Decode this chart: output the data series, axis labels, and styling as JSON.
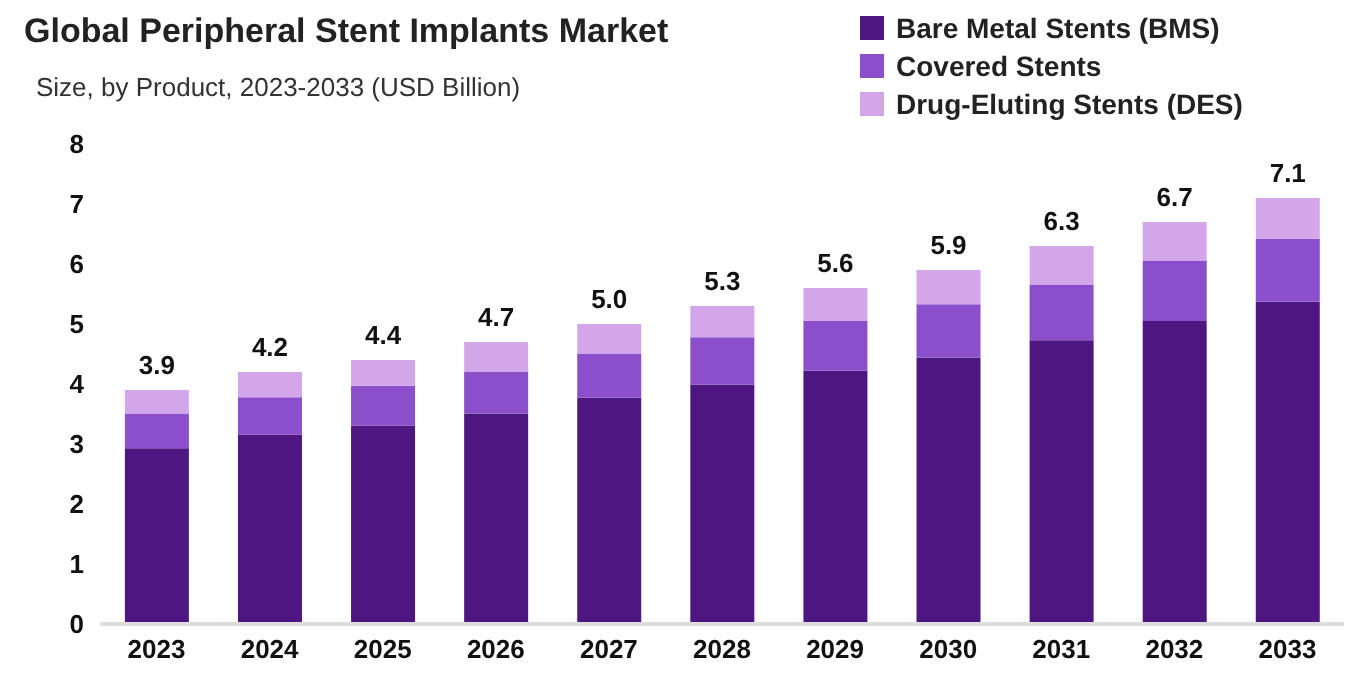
{
  "chart_data": {
    "type": "bar",
    "title": "Global Peripheral Stent Implants Market",
    "subtitle": "Size, by Product, 2023-2033 (USD Billion)",
    "categories": [
      "2023",
      "2024",
      "2025",
      "2026",
      "2027",
      "2028",
      "2029",
      "2030",
      "2031",
      "2032",
      "2033"
    ],
    "series": [
      {
        "name": "Bare Metal Stents (BMS)",
        "color": "#4e1680",
        "values": [
          2.93,
          3.16,
          3.31,
          3.51,
          3.77,
          3.99,
          4.22,
          4.44,
          4.73,
          5.05,
          5.37
        ]
      },
      {
        "name": "Covered Stents",
        "color": "#8b4fcc",
        "values": [
          0.58,
          0.62,
          0.66,
          0.7,
          0.74,
          0.79,
          0.83,
          0.89,
          0.93,
          1.01,
          1.05
        ]
      },
      {
        "name": "Drug-Eluting Stents (DES)",
        "color": "#d3a6ea",
        "values": [
          0.39,
          0.42,
          0.43,
          0.49,
          0.49,
          0.52,
          0.55,
          0.57,
          0.64,
          0.64,
          0.68
        ]
      }
    ],
    "stacked": true,
    "totals": [
      "3.9",
      "4.2",
      "4.4",
      "4.7",
      "5.0",
      "5.3",
      "5.6",
      "5.9",
      "6.3",
      "6.7",
      "7.1"
    ],
    "ylim": [
      0,
      8
    ],
    "yticks": [
      0,
      1,
      2,
      3,
      4,
      5,
      6,
      7,
      8
    ],
    "grid": false,
    "legend": "top right"
  }
}
